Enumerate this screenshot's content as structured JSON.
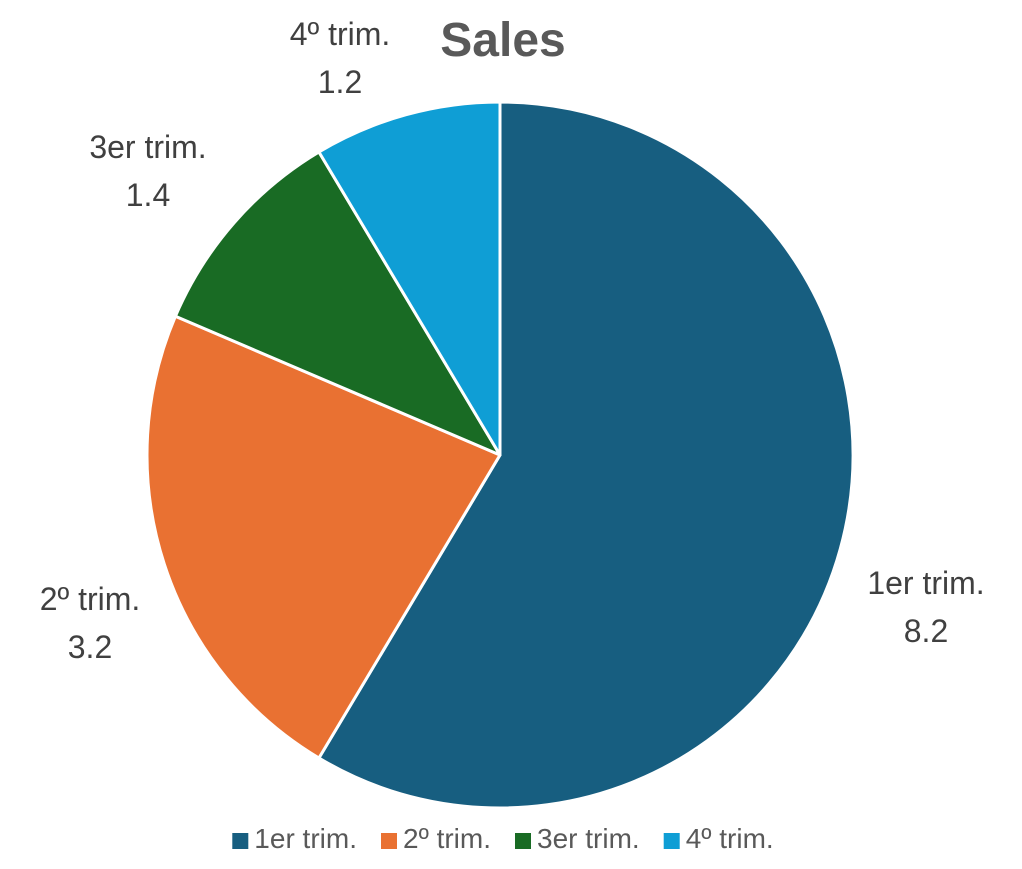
{
  "chart_data": {
    "type": "pie",
    "title": "Sales",
    "categories": [
      "1er trim.",
      "2º trim.",
      "3er trim.",
      "4º trim."
    ],
    "values": [
      8.2,
      3.2,
      1.4,
      1.2
    ],
    "value_labels": [
      "8.2",
      "3.2",
      "1.4",
      "1.2"
    ],
    "colors": [
      "#175E80",
      "#E97132",
      "#196B24",
      "#0F9ED5"
    ],
    "start_angle": "12 o'clock",
    "direction": "clockwise",
    "legend_position": "bottom"
  }
}
